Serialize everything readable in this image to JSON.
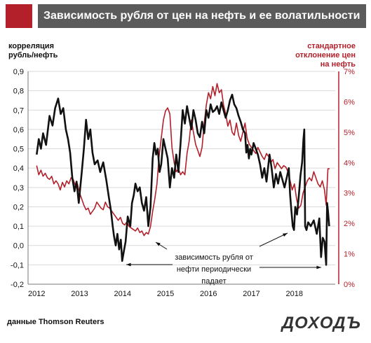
{
  "header": {
    "title": "Зависимость рубля от цен на нефть и ее волатильности",
    "accent": "#b3202a"
  },
  "left_axis_title": [
    "корреляция",
    "рубль/нефть"
  ],
  "right_axis_title": [
    "стандартное",
    "отклонение цен",
    "на нефть"
  ],
  "annotation": [
    "зависимость  рубля от",
    "нефти периодически",
    "падает"
  ],
  "source": "данные Thomson Reuters",
  "logo": "ДОХОДЪ",
  "colors": {
    "correlation": "#111111",
    "volatility": "#b3202a"
  },
  "chart_data": {
    "type": "line",
    "title": "Зависимость рубля от цен на нефть и ее волатильности",
    "xlabel": "",
    "x_ticks": [
      "2012",
      "2013",
      "2014",
      "2015",
      "2016",
      "2017",
      "2018"
    ],
    "ylabel": "корреляция рубль/нефть",
    "ylim": [
      -0.2,
      0.9
    ],
    "y_ticks": [
      "-0,2",
      "-0,1",
      "0,0",
      "0,1",
      "0,2",
      "0,3",
      "0,4",
      "0,5",
      "0,6",
      "0,7",
      "0,8",
      "0,9"
    ],
    "y2label": "стандартное отклонение цен на нефть",
    "y2lim": [
      0,
      7
    ],
    "y2_ticks": [
      "0%",
      "1%",
      "2%",
      "3%",
      "4%",
      "5%",
      "6%",
      "7%"
    ],
    "grid": true,
    "legend": "none",
    "series": [
      {
        "axis": "left",
        "points": [
          [
            2012.0,
            0.47
          ],
          [
            2012.05,
            0.55
          ],
          [
            2012.1,
            0.5
          ],
          [
            2012.15,
            0.58
          ],
          [
            2012.22,
            0.52
          ],
          [
            2012.3,
            0.67
          ],
          [
            2012.37,
            0.62
          ],
          [
            2012.43,
            0.71
          ],
          [
            2012.5,
            0.76
          ],
          [
            2012.56,
            0.68
          ],
          [
            2012.62,
            0.71
          ],
          [
            2012.68,
            0.6
          ],
          [
            2012.73,
            0.55
          ],
          [
            2012.78,
            0.48
          ],
          [
            2012.83,
            0.35
          ],
          [
            2012.88,
            0.28
          ],
          [
            2012.93,
            0.33
          ],
          [
            2012.98,
            0.22
          ],
          [
            2013.05,
            0.38
          ],
          [
            2013.1,
            0.5
          ],
          [
            2013.15,
            0.65
          ],
          [
            2013.2,
            0.55
          ],
          [
            2013.25,
            0.6
          ],
          [
            2013.3,
            0.48
          ],
          [
            2013.35,
            0.42
          ],
          [
            2013.42,
            0.44
          ],
          [
            2013.48,
            0.38
          ],
          [
            2013.55,
            0.43
          ],
          [
            2013.62,
            0.34
          ],
          [
            2013.68,
            0.25
          ],
          [
            2013.73,
            0.18
          ],
          [
            2013.77,
            0.1
          ],
          [
            2013.8,
            0.05
          ],
          [
            2013.84,
            0.0
          ],
          [
            2013.88,
            0.06
          ],
          [
            2013.92,
            -0.02
          ],
          [
            2013.96,
            0.03
          ],
          [
            2013.99,
            -0.08
          ],
          [
            2014.03,
            -0.03
          ],
          [
            2014.07,
            0.02
          ],
          [
            2014.12,
            0.15
          ],
          [
            2014.18,
            0.1
          ],
          [
            2014.22,
            0.22
          ],
          [
            2014.26,
            0.26
          ],
          [
            2014.3,
            0.32
          ],
          [
            2014.35,
            0.28
          ],
          [
            2014.4,
            0.3
          ],
          [
            2014.45,
            0.22
          ],
          [
            2014.5,
            0.18
          ],
          [
            2014.55,
            0.25
          ],
          [
            2014.6,
            0.1
          ],
          [
            2014.65,
            0.2
          ],
          [
            2014.7,
            0.45
          ],
          [
            2014.74,
            0.53
          ],
          [
            2014.78,
            0.47
          ],
          [
            2014.82,
            0.5
          ],
          [
            2014.86,
            0.38
          ],
          [
            2014.9,
            0.42
          ],
          [
            2014.95,
            0.55
          ],
          [
            2015.0,
            0.5
          ],
          [
            2015.05,
            0.45
          ],
          [
            2015.1,
            0.3
          ],
          [
            2015.15,
            0.4
          ],
          [
            2015.2,
            0.35
          ],
          [
            2015.25,
            0.47
          ],
          [
            2015.3,
            0.38
          ],
          [
            2015.35,
            0.53
          ],
          [
            2015.4,
            0.7
          ],
          [
            2015.45,
            0.63
          ],
          [
            2015.5,
            0.72
          ],
          [
            2015.55,
            0.66
          ],
          [
            2015.6,
            0.6
          ],
          [
            2015.65,
            0.7
          ],
          [
            2015.7,
            0.65
          ],
          [
            2015.75,
            0.58
          ],
          [
            2015.8,
            0.56
          ],
          [
            2015.85,
            0.64
          ],
          [
            2015.9,
            0.58
          ],
          [
            2015.95,
            0.7
          ],
          [
            2016.0,
            0.66
          ],
          [
            2016.05,
            0.73
          ],
          [
            2016.1,
            0.69
          ],
          [
            2016.15,
            0.7
          ],
          [
            2016.2,
            0.72
          ],
          [
            2016.25,
            0.68
          ],
          [
            2016.3,
            0.74
          ],
          [
            2016.35,
            0.7
          ],
          [
            2016.4,
            0.66
          ],
          [
            2016.45,
            0.7
          ],
          [
            2016.5,
            0.75
          ],
          [
            2016.55,
            0.78
          ],
          [
            2016.6,
            0.73
          ],
          [
            2016.65,
            0.71
          ],
          [
            2016.7,
            0.67
          ],
          [
            2016.75,
            0.64
          ],
          [
            2016.8,
            0.6
          ],
          [
            2016.85,
            0.58
          ],
          [
            2016.88,
            0.48
          ],
          [
            2016.91,
            0.52
          ],
          [
            2016.94,
            0.45
          ],
          [
            2016.97,
            0.5
          ],
          [
            2017.0,
            0.47
          ],
          [
            2017.05,
            0.53
          ],
          [
            2017.1,
            0.5
          ],
          [
            2017.15,
            0.47
          ],
          [
            2017.2,
            0.42
          ],
          [
            2017.25,
            0.35
          ],
          [
            2017.3,
            0.4
          ],
          [
            2017.35,
            0.33
          ],
          [
            2017.42,
            0.47
          ],
          [
            2017.47,
            0.4
          ],
          [
            2017.52,
            0.3
          ],
          [
            2017.57,
            0.37
          ],
          [
            2017.62,
            0.32
          ],
          [
            2017.67,
            0.38
          ],
          [
            2017.72,
            0.34
          ],
          [
            2017.77,
            0.3
          ],
          [
            2017.82,
            0.35
          ],
          [
            2017.87,
            0.4
          ],
          [
            2017.9,
            0.26
          ],
          [
            2017.93,
            0.18
          ],
          [
            2017.96,
            0.1
          ],
          [
            2017.99,
            0.08
          ],
          [
            2018.02,
            0.2
          ],
          [
            2018.06,
            0.16
          ],
          [
            2018.1,
            0.25
          ],
          [
            2018.14,
            0.36
          ],
          [
            2018.18,
            0.43
          ],
          [
            2018.21,
            0.55
          ],
          [
            2018.23,
            0.6
          ],
          [
            2018.25,
            0.1
          ],
          [
            2018.28,
            0.08
          ],
          [
            2018.32,
            0.12
          ],
          [
            2018.38,
            0.1
          ],
          [
            2018.45,
            0.13
          ],
          [
            2018.52,
            0.06
          ],
          [
            2018.58,
            0.14
          ],
          [
            2018.62,
            -0.06
          ],
          [
            2018.66,
            0.04
          ],
          [
            2018.7,
            0.02
          ],
          [
            2018.74,
            -0.1
          ],
          [
            2018.76,
            0.22
          ],
          [
            2018.78,
            0.18
          ],
          [
            2018.81,
            0.1
          ]
        ]
      },
      {
        "axis": "right",
        "points": [
          [
            2012.0,
            3.9
          ],
          [
            2012.05,
            3.6
          ],
          [
            2012.1,
            3.75
          ],
          [
            2012.15,
            3.55
          ],
          [
            2012.2,
            3.65
          ],
          [
            2012.25,
            3.5
          ],
          [
            2012.3,
            3.45
          ],
          [
            2012.35,
            3.55
          ],
          [
            2012.4,
            3.3
          ],
          [
            2012.45,
            3.4
          ],
          [
            2012.5,
            3.3
          ],
          [
            2012.55,
            3.1
          ],
          [
            2012.6,
            3.35
          ],
          [
            2012.65,
            3.2
          ],
          [
            2012.7,
            3.4
          ],
          [
            2012.75,
            3.3
          ],
          [
            2012.8,
            3.5
          ],
          [
            2012.85,
            3.45
          ],
          [
            2012.9,
            3.25
          ],
          [
            2012.95,
            3.3
          ],
          [
            2013.0,
            3.0
          ],
          [
            2013.05,
            2.8
          ],
          [
            2013.1,
            2.6
          ],
          [
            2013.15,
            2.45
          ],
          [
            2013.2,
            2.5
          ],
          [
            2013.25,
            2.3
          ],
          [
            2013.3,
            2.4
          ],
          [
            2013.35,
            2.5
          ],
          [
            2013.4,
            2.7
          ],
          [
            2013.45,
            2.6
          ],
          [
            2013.5,
            2.5
          ],
          [
            2013.55,
            2.45
          ],
          [
            2013.6,
            2.7
          ],
          [
            2013.65,
            2.55
          ],
          [
            2013.7,
            2.5
          ],
          [
            2013.75,
            2.4
          ],
          [
            2013.8,
            2.3
          ],
          [
            2013.85,
            2.2
          ],
          [
            2013.9,
            2.1
          ],
          [
            2013.95,
            2.2
          ],
          [
            2014.0,
            2.0
          ],
          [
            2014.05,
            1.95
          ],
          [
            2014.1,
            2.05
          ],
          [
            2014.15,
            1.9
          ],
          [
            2014.2,
            1.85
          ],
          [
            2014.25,
            1.8
          ],
          [
            2014.3,
            1.75
          ],
          [
            2014.35,
            1.85
          ],
          [
            2014.4,
            1.7
          ],
          [
            2014.45,
            1.75
          ],
          [
            2014.5,
            1.6
          ],
          [
            2014.55,
            1.7
          ],
          [
            2014.6,
            1.65
          ],
          [
            2014.65,
            1.9
          ],
          [
            2014.7,
            2.4
          ],
          [
            2014.75,
            2.8
          ],
          [
            2014.8,
            3.3
          ],
          [
            2014.85,
            4.2
          ],
          [
            2014.9,
            4.8
          ],
          [
            2014.95,
            5.4
          ],
          [
            2015.0,
            5.7
          ],
          [
            2015.05,
            5.8
          ],
          [
            2015.1,
            5.6
          ],
          [
            2015.15,
            4.5
          ],
          [
            2015.2,
            4.0
          ],
          [
            2015.25,
            3.7
          ],
          [
            2015.3,
            3.8
          ],
          [
            2015.35,
            3.6
          ],
          [
            2015.4,
            3.7
          ],
          [
            2015.45,
            3.6
          ],
          [
            2015.5,
            4.3
          ],
          [
            2015.55,
            4.7
          ],
          [
            2015.6,
            5.4
          ],
          [
            2015.65,
            5.0
          ],
          [
            2015.7,
            4.6
          ],
          [
            2015.75,
            4.4
          ],
          [
            2015.8,
            4.2
          ],
          [
            2015.85,
            4.5
          ],
          [
            2015.9,
            5.3
          ],
          [
            2015.95,
            5.9
          ],
          [
            2016.0,
            6.3
          ],
          [
            2016.05,
            6.1
          ],
          [
            2016.1,
            6.5
          ],
          [
            2016.15,
            6.2
          ],
          [
            2016.2,
            6.6
          ],
          [
            2016.25,
            6.3
          ],
          [
            2016.3,
            6.4
          ],
          [
            2016.35,
            5.9
          ],
          [
            2016.4,
            5.6
          ],
          [
            2016.45,
            5.2
          ],
          [
            2016.5,
            5.4
          ],
          [
            2016.55,
            5.0
          ],
          [
            2016.6,
            4.9
          ],
          [
            2016.65,
            5.3
          ],
          [
            2016.7,
            4.9
          ],
          [
            2016.75,
            4.7
          ],
          [
            2016.8,
            5.0
          ],
          [
            2016.85,
            5.3
          ],
          [
            2016.9,
            4.8
          ],
          [
            2016.95,
            4.6
          ],
          [
            2017.0,
            4.5
          ],
          [
            2017.05,
            4.4
          ],
          [
            2017.1,
            4.3
          ],
          [
            2017.15,
            4.5
          ],
          [
            2017.2,
            4.35
          ],
          [
            2017.25,
            4.2
          ],
          [
            2017.3,
            4.1
          ],
          [
            2017.35,
            4.3
          ],
          [
            2017.4,
            4.2
          ],
          [
            2017.45,
            4.0
          ],
          [
            2017.5,
            4.1
          ],
          [
            2017.55,
            3.8
          ],
          [
            2017.6,
            4.0
          ],
          [
            2017.65,
            3.9
          ],
          [
            2017.7,
            3.8
          ],
          [
            2017.75,
            3.9
          ],
          [
            2017.8,
            3.85
          ],
          [
            2017.85,
            3.7
          ],
          [
            2017.9,
            3.4
          ],
          [
            2017.95,
            3.1
          ],
          [
            2018.0,
            3.3
          ],
          [
            2018.05,
            2.8
          ],
          [
            2018.1,
            2.5
          ],
          [
            2018.15,
            2.6
          ],
          [
            2018.2,
            3.0
          ],
          [
            2018.25,
            3.2
          ],
          [
            2018.3,
            3.4
          ],
          [
            2018.35,
            3.5
          ],
          [
            2018.4,
            3.4
          ],
          [
            2018.45,
            3.7
          ],
          [
            2018.5,
            3.5
          ],
          [
            2018.55,
            3.3
          ],
          [
            2018.6,
            3.2
          ],
          [
            2018.65,
            3.4
          ],
          [
            2018.7,
            3.1
          ],
          [
            2018.74,
            2.6
          ],
          [
            2018.78,
            3.8
          ],
          [
            2018.82,
            3.8
          ]
        ]
      }
    ]
  }
}
